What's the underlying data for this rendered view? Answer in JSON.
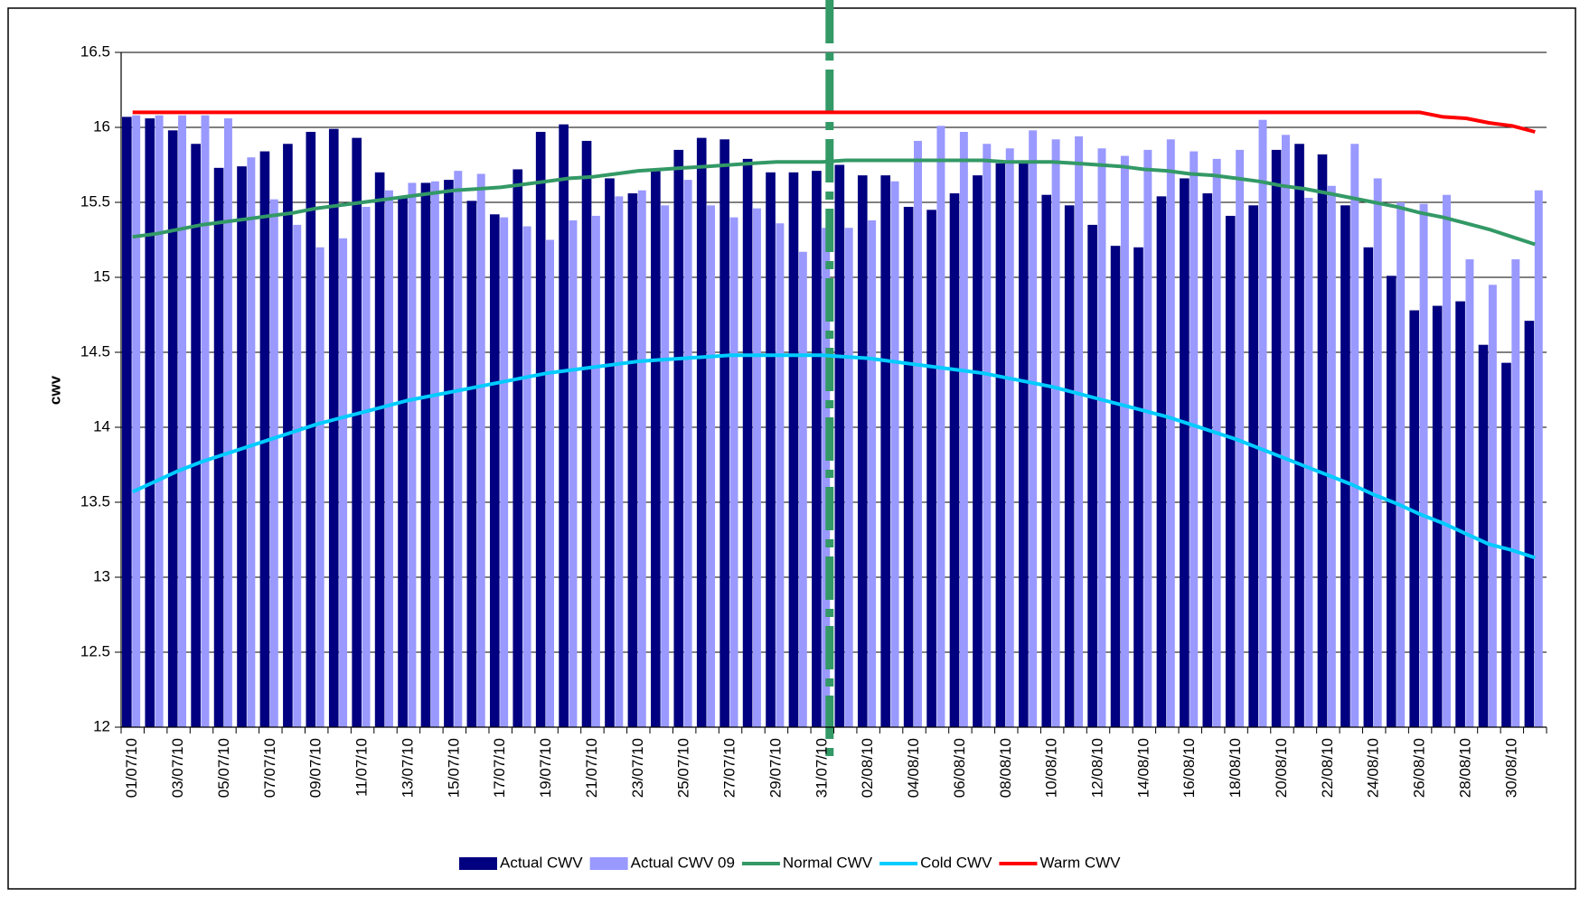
{
  "chart_data": {
    "type": "bar",
    "y_label": "cwv",
    "ylim": [
      12,
      16.5
    ],
    "yticks": [
      12,
      12.5,
      13,
      13.5,
      14,
      14.5,
      15,
      15.5,
      16,
      16.5
    ],
    "grid": true,
    "legend": "bottom",
    "categories": [
      "01/07/10",
      null,
      "03/07/10",
      null,
      "05/07/10",
      null,
      "07/07/10",
      null,
      "09/07/10",
      null,
      "11/07/10",
      null,
      "13/07/10",
      null,
      "15/07/10",
      null,
      "17/07/10",
      null,
      "19/07/10",
      null,
      "21/07/10",
      null,
      "23/07/10",
      null,
      "25/07/10",
      null,
      "27/07/10",
      null,
      "29/07/10",
      null,
      "31/07/10",
      null,
      "02/08/10",
      null,
      "04/08/10",
      null,
      "06/08/10",
      null,
      "08/08/10",
      null,
      "10/08/10",
      null,
      "12/08/10",
      null,
      "14/08/10",
      null,
      "16/08/10",
      null,
      "18/08/10",
      null,
      "20/08/10",
      null,
      "22/08/10",
      null,
      "24/08/10",
      null,
      "26/08/10",
      null,
      "28/08/10",
      null,
      "30/08/10",
      null
    ],
    "series": [
      {
        "name": "Actual CWV",
        "type": "bar",
        "color": "#000080",
        "values": [
          16.07,
          16.06,
          15.98,
          15.89,
          15.73,
          15.74,
          15.84,
          15.89,
          15.97,
          15.99,
          15.93,
          15.7,
          15.54,
          15.63,
          15.65,
          15.51,
          15.42,
          15.72,
          15.97,
          16.02,
          15.91,
          15.66,
          15.56,
          15.71,
          15.85,
          15.93,
          15.92,
          15.79,
          15.7,
          15.7,
          15.71,
          15.75,
          15.68,
          15.68,
          15.47,
          15.45,
          15.56,
          15.68,
          15.76,
          15.76,
          15.55,
          15.48,
          15.35,
          15.21,
          15.2,
          15.54,
          15.66,
          15.56,
          15.41,
          15.48,
          15.85,
          15.89,
          15.82,
          15.48,
          15.2,
          15.01,
          14.78,
          14.81,
          14.84,
          14.55,
          14.43,
          14.71
        ]
      },
      {
        "name": "Actual CWV 09",
        "type": "bar",
        "color": "#9999ff",
        "values": [
          16.08,
          16.08,
          16.08,
          16.08,
          16.06,
          15.8,
          15.52,
          15.35,
          15.2,
          15.26,
          15.47,
          15.58,
          15.63,
          15.64,
          15.71,
          15.69,
          15.4,
          15.34,
          15.25,
          15.38,
          15.41,
          15.54,
          15.58,
          15.48,
          15.65,
          15.48,
          15.4,
          15.46,
          15.36,
          15.17,
          15.33,
          15.33,
          15.38,
          15.64,
          15.91,
          16.01,
          15.97,
          15.89,
          15.86,
          15.98,
          15.92,
          15.94,
          15.86,
          15.81,
          15.85,
          15.92,
          15.84,
          15.79,
          15.85,
          16.05,
          15.95,
          15.53,
          15.61,
          15.89,
          15.66,
          15.5,
          15.49,
          15.55,
          15.12,
          14.95,
          15.12,
          15.58
        ]
      },
      {
        "name": "Normal CWV",
        "type": "line",
        "color": "#339966",
        "values": [
          15.27,
          15.29,
          15.32,
          15.35,
          15.37,
          15.39,
          15.41,
          15.43,
          15.46,
          15.48,
          15.5,
          15.52,
          15.54,
          15.56,
          15.58,
          15.59,
          15.6,
          15.62,
          15.64,
          15.66,
          15.67,
          15.69,
          15.71,
          15.72,
          15.73,
          15.74,
          15.75,
          15.76,
          15.77,
          15.77,
          15.77,
          15.78,
          15.78,
          15.78,
          15.78,
          15.78,
          15.78,
          15.78,
          15.77,
          15.77,
          15.77,
          15.76,
          15.75,
          15.74,
          15.72,
          15.71,
          15.69,
          15.68,
          15.66,
          15.64,
          15.61,
          15.59,
          15.56,
          15.53,
          15.5,
          15.47,
          15.43,
          15.4,
          15.36,
          15.32,
          15.27,
          15.22
        ]
      },
      {
        "name": "Cold CWV",
        "type": "line",
        "color": "#00ccff",
        "values": [
          13.57,
          13.64,
          13.71,
          13.77,
          13.82,
          13.87,
          13.92,
          13.97,
          14.02,
          14.06,
          14.1,
          14.14,
          14.18,
          14.21,
          14.24,
          14.27,
          14.3,
          14.33,
          14.36,
          14.38,
          14.4,
          14.42,
          14.44,
          14.45,
          14.46,
          14.47,
          14.48,
          14.48,
          14.48,
          14.48,
          14.48,
          14.47,
          14.46,
          14.44,
          14.42,
          14.4,
          14.38,
          14.36,
          14.33,
          14.3,
          14.27,
          14.23,
          14.19,
          14.15,
          14.11,
          14.07,
          14.02,
          13.97,
          13.92,
          13.86,
          13.8,
          13.74,
          13.68,
          13.62,
          13.55,
          13.49,
          13.42,
          13.36,
          13.29,
          13.22,
          13.18,
          13.13
        ]
      },
      {
        "name": "Warm CWV",
        "type": "line",
        "color": "#ff0000",
        "values": [
          16.1,
          16.1,
          16.1,
          16.1,
          16.1,
          16.1,
          16.1,
          16.1,
          16.1,
          16.1,
          16.1,
          16.1,
          16.1,
          16.1,
          16.1,
          16.1,
          16.1,
          16.1,
          16.1,
          16.1,
          16.1,
          16.1,
          16.1,
          16.1,
          16.1,
          16.1,
          16.1,
          16.1,
          16.1,
          16.1,
          16.1,
          16.1,
          16.1,
          16.1,
          16.1,
          16.1,
          16.1,
          16.1,
          16.1,
          16.1,
          16.1,
          16.1,
          16.1,
          16.1,
          16.1,
          16.1,
          16.1,
          16.1,
          16.1,
          16.1,
          16.1,
          16.1,
          16.1,
          16.1,
          16.1,
          16.1,
          16.1,
          16.07,
          16.06,
          16.03,
          16.01,
          15.97
        ]
      }
    ]
  }
}
